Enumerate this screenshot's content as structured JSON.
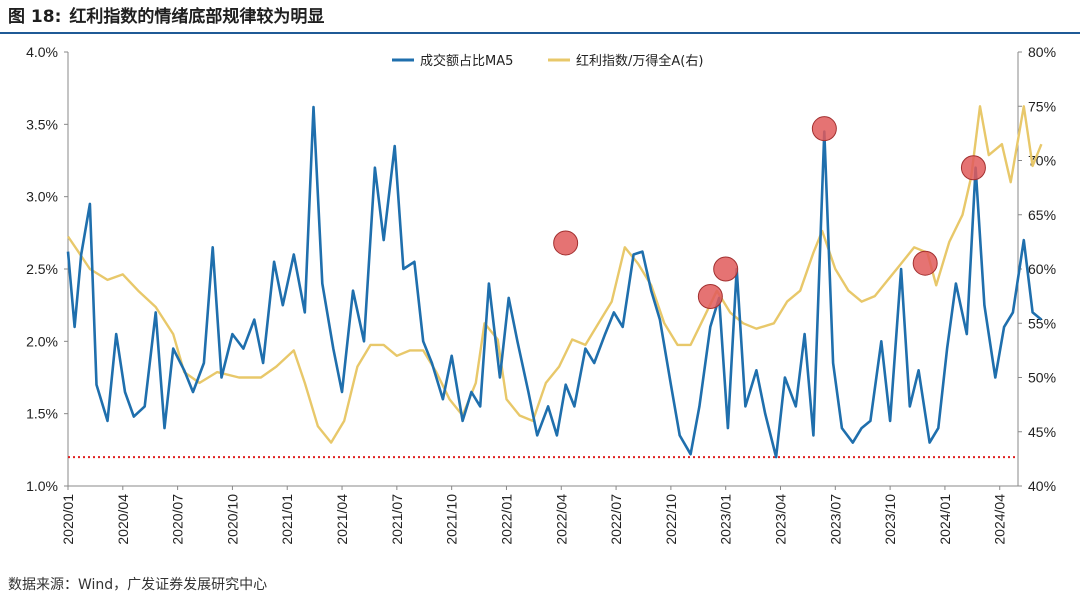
{
  "figure": {
    "label": "图 18:",
    "title": "红利指数的情绪底部规律较为明显",
    "source": "数据来源：Wind，广发证券发展研究中心"
  },
  "colors": {
    "series1": "#1f6fad",
    "series2": "#e8c86a",
    "marker": "#e05a5a",
    "refline": "#e02020",
    "rule": "#1f5a96"
  },
  "chart_data": {
    "type": "line",
    "title": "",
    "x_ticks": [
      "2020/01",
      "2020/04",
      "2020/07",
      "2020/10",
      "2021/01",
      "2021/04",
      "2021/07",
      "2021/10",
      "2022/01",
      "2022/04",
      "2022/07",
      "2022/10",
      "2023/01",
      "2023/04",
      "2023/07",
      "2023/10",
      "2024/01",
      "2024/04"
    ],
    "x_range": [
      "2020/01",
      "2024/05"
    ],
    "left_axis": {
      "ticks": [
        "1.0%",
        "1.5%",
        "2.0%",
        "2.5%",
        "3.0%",
        "3.5%",
        "4.0%"
      ],
      "ylim": [
        1.0,
        4.0
      ]
    },
    "right_axis": {
      "ticks": [
        "40%",
        "45%",
        "50%",
        "55%",
        "60%",
        "65%",
        "70%",
        "75%",
        "80%"
      ],
      "ylim": [
        40,
        80
      ]
    },
    "reference_line": {
      "axis": "left",
      "value": 1.2,
      "style": "dotted"
    },
    "legend": {
      "position": "top-center"
    },
    "series": [
      {
        "name": "成交额占比MA5",
        "axis": "left",
        "points": [
          [
            2020.0,
            2.62
          ],
          [
            2020.03,
            2.1
          ],
          [
            2020.06,
            2.6
          ],
          [
            2020.1,
            2.95
          ],
          [
            2020.13,
            1.7
          ],
          [
            2020.18,
            1.45
          ],
          [
            2020.22,
            2.05
          ],
          [
            2020.26,
            1.65
          ],
          [
            2020.3,
            1.48
          ],
          [
            2020.35,
            1.55
          ],
          [
            2020.4,
            2.2
          ],
          [
            2020.44,
            1.4
          ],
          [
            2020.48,
            1.95
          ],
          [
            2020.53,
            1.8
          ],
          [
            2020.57,
            1.65
          ],
          [
            2020.62,
            1.85
          ],
          [
            2020.66,
            2.65
          ],
          [
            2020.7,
            1.75
          ],
          [
            2020.75,
            2.05
          ],
          [
            2020.8,
            1.95
          ],
          [
            2020.85,
            2.15
          ],
          [
            2020.89,
            1.85
          ],
          [
            2020.94,
            2.55
          ],
          [
            2020.98,
            2.25
          ],
          [
            2021.03,
            2.6
          ],
          [
            2021.08,
            2.2
          ],
          [
            2021.12,
            3.62
          ],
          [
            2021.16,
            2.4
          ],
          [
            2021.21,
            1.95
          ],
          [
            2021.25,
            1.65
          ],
          [
            2021.3,
            2.35
          ],
          [
            2021.35,
            2.0
          ],
          [
            2021.4,
            3.2
          ],
          [
            2021.44,
            2.7
          ],
          [
            2021.49,
            3.35
          ],
          [
            2021.53,
            2.5
          ],
          [
            2021.58,
            2.55
          ],
          [
            2021.62,
            2.0
          ],
          [
            2021.66,
            1.85
          ],
          [
            2021.71,
            1.6
          ],
          [
            2021.75,
            1.9
          ],
          [
            2021.8,
            1.45
          ],
          [
            2021.84,
            1.65
          ],
          [
            2021.88,
            1.55
          ],
          [
            2021.92,
            2.4
          ],
          [
            2021.97,
            1.75
          ],
          [
            2022.01,
            2.3
          ],
          [
            2022.05,
            2.0
          ],
          [
            2022.1,
            1.65
          ],
          [
            2022.14,
            1.35
          ],
          [
            2022.19,
            1.55
          ],
          [
            2022.23,
            1.35
          ],
          [
            2022.27,
            1.7
          ],
          [
            2022.31,
            1.55
          ],
          [
            2022.36,
            1.95
          ],
          [
            2022.4,
            1.85
          ],
          [
            2022.45,
            2.05
          ],
          [
            2022.49,
            2.2
          ],
          [
            2022.53,
            2.1
          ],
          [
            2022.58,
            2.6
          ],
          [
            2022.62,
            2.62
          ],
          [
            2022.66,
            2.35
          ],
          [
            2022.7,
            2.15
          ],
          [
            2022.75,
            1.7
          ],
          [
            2022.79,
            1.35
          ],
          [
            2022.84,
            1.22
          ],
          [
            2022.88,
            1.55
          ],
          [
            2022.93,
            2.1
          ],
          [
            2022.97,
            2.3
          ],
          [
            2023.01,
            1.4
          ],
          [
            2023.05,
            2.5
          ],
          [
            2023.09,
            1.55
          ],
          [
            2023.14,
            1.8
          ],
          [
            2023.18,
            1.5
          ],
          [
            2023.23,
            1.2
          ],
          [
            2023.27,
            1.75
          ],
          [
            2023.32,
            1.55
          ],
          [
            2023.36,
            2.05
          ],
          [
            2023.4,
            1.35
          ],
          [
            2023.45,
            3.45
          ],
          [
            2023.49,
            1.85
          ],
          [
            2023.53,
            1.4
          ],
          [
            2023.58,
            1.3
          ],
          [
            2023.62,
            1.4
          ],
          [
            2023.66,
            1.45
          ],
          [
            2023.71,
            2.0
          ],
          [
            2023.75,
            1.45
          ],
          [
            2023.8,
            2.5
          ],
          [
            2023.84,
            1.55
          ],
          [
            2023.88,
            1.8
          ],
          [
            2023.93,
            1.3
          ],
          [
            2023.97,
            1.4
          ],
          [
            2024.01,
            1.95
          ],
          [
            2024.05,
            2.4
          ],
          [
            2024.1,
            2.05
          ],
          [
            2024.14,
            3.2
          ],
          [
            2024.18,
            2.25
          ],
          [
            2024.23,
            1.75
          ],
          [
            2024.27,
            2.1
          ],
          [
            2024.31,
            2.2
          ],
          [
            2024.36,
            2.7
          ],
          [
            2024.4,
            2.2
          ],
          [
            2024.44,
            2.15
          ]
        ]
      },
      {
        "name": "红利指数/万得全A(右)",
        "axis": "right",
        "points": [
          [
            2020.0,
            63.0
          ],
          [
            2020.05,
            61.5
          ],
          [
            2020.1,
            60.0
          ],
          [
            2020.18,
            59.0
          ],
          [
            2020.25,
            59.5
          ],
          [
            2020.32,
            58.0
          ],
          [
            2020.4,
            56.5
          ],
          [
            2020.48,
            54.0
          ],
          [
            2020.53,
            50.5
          ],
          [
            2020.6,
            49.5
          ],
          [
            2020.68,
            50.5
          ],
          [
            2020.78,
            50.0
          ],
          [
            2020.88,
            50.0
          ],
          [
            2020.95,
            51.0
          ],
          [
            2021.03,
            52.5
          ],
          [
            2021.08,
            49.5
          ],
          [
            2021.14,
            45.5
          ],
          [
            2021.2,
            44.0
          ],
          [
            2021.26,
            46.0
          ],
          [
            2021.32,
            51.0
          ],
          [
            2021.38,
            53.0
          ],
          [
            2021.44,
            53.0
          ],
          [
            2021.5,
            52.0
          ],
          [
            2021.56,
            52.5
          ],
          [
            2021.62,
            52.5
          ],
          [
            2021.68,
            50.5
          ],
          [
            2021.74,
            48.0
          ],
          [
            2021.8,
            46.5
          ],
          [
            2021.86,
            49.5
          ],
          [
            2021.9,
            55.0
          ],
          [
            2021.96,
            53.5
          ],
          [
            2022.0,
            48.0
          ],
          [
            2022.06,
            46.5
          ],
          [
            2022.12,
            46.0
          ],
          [
            2022.18,
            49.5
          ],
          [
            2022.24,
            51.0
          ],
          [
            2022.3,
            53.5
          ],
          [
            2022.36,
            53.0
          ],
          [
            2022.42,
            55.0
          ],
          [
            2022.48,
            57.0
          ],
          [
            2022.54,
            62.0
          ],
          [
            2022.6,
            60.5
          ],
          [
            2022.66,
            58.5
          ],
          [
            2022.72,
            55.0
          ],
          [
            2022.78,
            53.0
          ],
          [
            2022.84,
            53.0
          ],
          [
            2022.9,
            55.5
          ],
          [
            2022.96,
            58.0
          ],
          [
            2023.02,
            56.0
          ],
          [
            2023.08,
            55.0
          ],
          [
            2023.14,
            54.5
          ],
          [
            2023.22,
            55.0
          ],
          [
            2023.28,
            57.0
          ],
          [
            2023.34,
            58.0
          ],
          [
            2023.4,
            61.5
          ],
          [
            2023.44,
            63.5
          ],
          [
            2023.5,
            60.0
          ],
          [
            2023.56,
            58.0
          ],
          [
            2023.62,
            57.0
          ],
          [
            2023.68,
            57.5
          ],
          [
            2023.74,
            59.0
          ],
          [
            2023.8,
            60.5
          ],
          [
            2023.86,
            62.0
          ],
          [
            2023.92,
            61.5
          ],
          [
            2023.96,
            58.5
          ],
          [
            2024.02,
            62.5
          ],
          [
            2024.08,
            65.0
          ],
          [
            2024.12,
            68.5
          ],
          [
            2024.16,
            75.0
          ],
          [
            2024.2,
            70.5
          ],
          [
            2024.26,
            71.5
          ],
          [
            2024.3,
            68.0
          ],
          [
            2024.36,
            75.0
          ],
          [
            2024.4,
            69.5
          ],
          [
            2024.44,
            71.5
          ]
        ]
      }
    ],
    "highlight_markers": [
      {
        "axis": "left",
        "x": 2022.27,
        "y": 2.68
      },
      {
        "axis": "left",
        "x": 2022.93,
        "y": 2.31
      },
      {
        "axis": "left",
        "x": 2023.0,
        "y": 2.5
      },
      {
        "axis": "left",
        "x": 2023.45,
        "y": 3.47
      },
      {
        "axis": "left",
        "x": 2023.91,
        "y": 2.54
      },
      {
        "axis": "left",
        "x": 2024.13,
        "y": 3.2
      }
    ]
  }
}
